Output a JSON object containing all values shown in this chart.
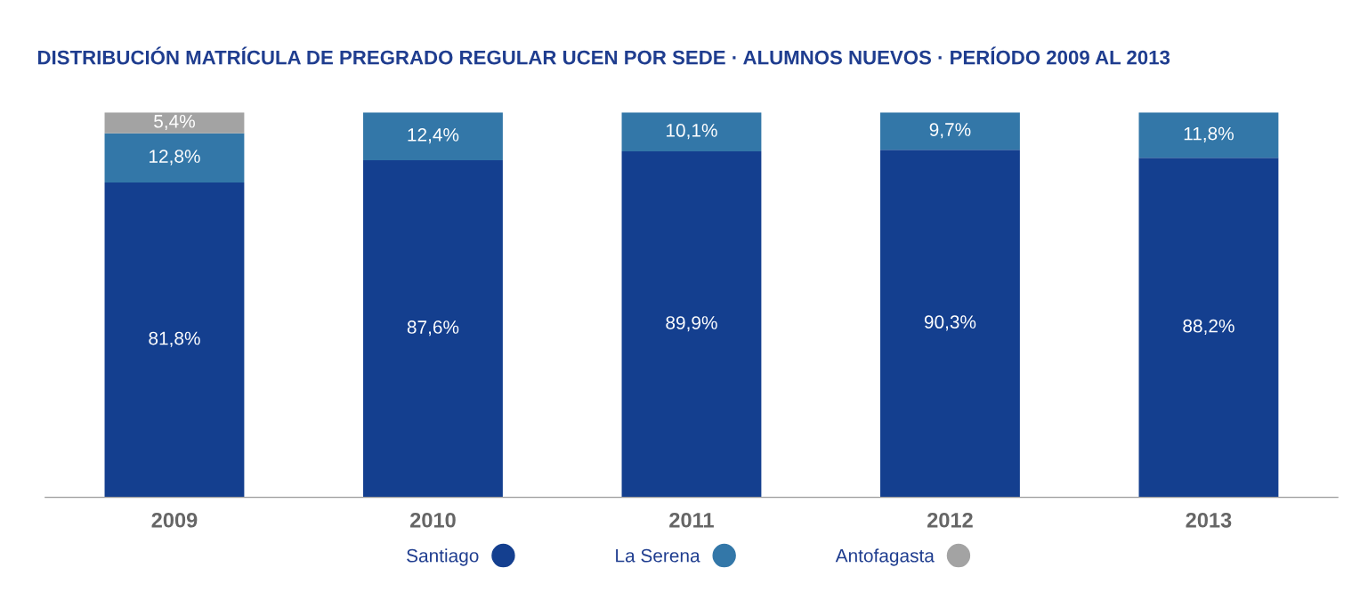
{
  "chart_data": {
    "type": "bar",
    "stacked": true,
    "title": "DISTRIBUCIÓN MATRÍCULA DE PREGRADO REGULAR UCEN POR SEDE · ALUMNOS NUEVOS · PERÍODO 2009 AL 2013",
    "categories": [
      "2009",
      "2010",
      "2011",
      "2012",
      "2013"
    ],
    "series": [
      {
        "name": "Santiago",
        "color": "#143f8f",
        "values": [
          81.8,
          87.6,
          89.9,
          90.3,
          88.2
        ],
        "value_labels": [
          "81,8%",
          "87,6%",
          "89,9%",
          "90,3%",
          "88,2%"
        ]
      },
      {
        "name": "La Serena",
        "color": "#3377a8",
        "values": [
          12.8,
          12.4,
          10.1,
          9.7,
          11.8
        ],
        "value_labels": [
          "12,8%",
          "12,4%",
          "10,1%",
          "9,7%",
          "11,8%"
        ]
      },
      {
        "name": "Antofagasta",
        "color": "#a3a3a3",
        "values": [
          5.4,
          null,
          null,
          null,
          null
        ],
        "value_labels": [
          "5,4%",
          null,
          null,
          null,
          null
        ]
      }
    ],
    "legend": "bottom",
    "marker": "circle",
    "grid": false
  }
}
